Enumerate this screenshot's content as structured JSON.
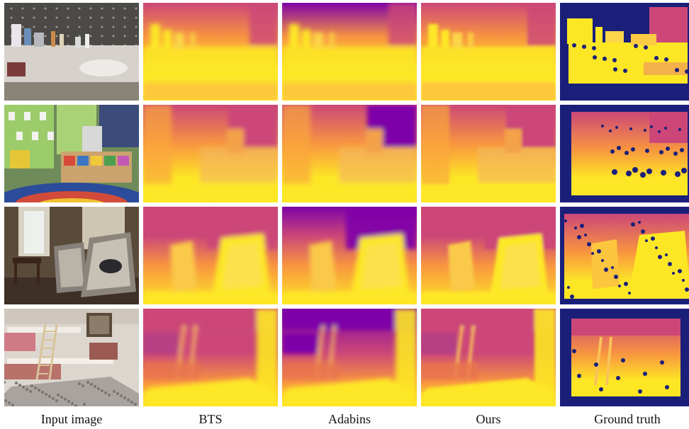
{
  "figure": {
    "columns": [
      {
        "key": "input",
        "label": "Input image"
      },
      {
        "key": "bts",
        "label": "BTS"
      },
      {
        "key": "adabins",
        "label": "Adabins"
      },
      {
        "key": "ours",
        "label": "Ours"
      },
      {
        "key": "gt",
        "label": "Ground truth"
      }
    ],
    "rows": [
      {
        "scene": "bathroom-sink"
      },
      {
        "scene": "classroom-shelves"
      },
      {
        "scene": "living-room-armchairs"
      },
      {
        "scene": "bedroom-bunk-bed"
      }
    ],
    "colormap": "plasma",
    "colors": {
      "near": "#fde725",
      "mid": "#f89540",
      "far_mid": "#cc4778",
      "far": "#7e03a8",
      "invalid": "#1a1f7a"
    }
  }
}
